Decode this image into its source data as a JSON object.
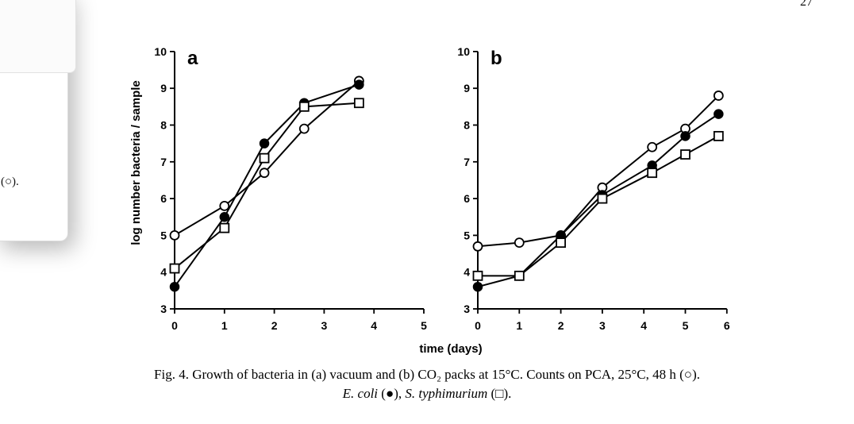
{
  "page_number": "27",
  "side_panel": {
    "text": "(○)."
  },
  "caption": {
    "line1": "Fig. 4. Growth of bacteria in (a) vacuum and (b) CO₂ packs at 15°C. Counts on PCA, 25°C, 48 h (○).",
    "line2_species1": "E. coli",
    "line2_symbol1": " (●), ",
    "line2_species2": "S. typhimurium",
    "line2_symbol2": " (□)."
  },
  "chart_data": [
    {
      "type": "line",
      "panel_label": "a",
      "xlabel": "time (days)",
      "ylabel": "log number bacteria / sample",
      "xlim": [
        0,
        5
      ],
      "ylim": [
        3,
        10
      ],
      "xticks": [
        0,
        1,
        2,
        3,
        4,
        5
      ],
      "yticks": [
        3,
        4,
        5,
        6,
        7,
        8,
        9,
        10
      ],
      "series": [
        {
          "name": "PCA, 25°C, 48 h",
          "marker": "open-circle",
          "x": [
            0,
            1,
            1.8,
            2.6,
            3.7
          ],
          "y": [
            5.0,
            5.8,
            6.7,
            7.9,
            9.2
          ]
        },
        {
          "name": "E. coli",
          "marker": "filled-circle",
          "x": [
            0,
            1,
            1.8,
            2.6,
            3.7
          ],
          "y": [
            3.6,
            5.5,
            7.5,
            8.6,
            9.1
          ]
        },
        {
          "name": "S. typhimurium",
          "marker": "open-square",
          "x": [
            0,
            1,
            1.8,
            2.6,
            3.7
          ],
          "y": [
            4.1,
            5.2,
            7.1,
            8.5,
            8.6
          ]
        }
      ]
    },
    {
      "type": "line",
      "panel_label": "b",
      "xlabel": "time (days)",
      "ylabel": "",
      "xlim": [
        0,
        6
      ],
      "ylim": [
        3,
        10
      ],
      "xticks": [
        0,
        1,
        2,
        3,
        4,
        5,
        6
      ],
      "yticks": [
        3,
        4,
        5,
        6,
        7,
        8,
        9,
        10
      ],
      "series": [
        {
          "name": "PCA, 25°C, 48 h",
          "marker": "open-circle",
          "x": [
            0,
            1,
            2,
            3,
            4.2,
            5,
            5.8
          ],
          "y": [
            4.7,
            4.8,
            5.0,
            6.3,
            7.4,
            7.9,
            8.8
          ]
        },
        {
          "name": "E. coli",
          "marker": "filled-circle",
          "x": [
            0,
            1,
            2,
            3,
            4.2,
            5,
            5.8
          ],
          "y": [
            3.6,
            3.9,
            5.0,
            6.1,
            6.9,
            7.7,
            8.3
          ]
        },
        {
          "name": "S. typhimurium",
          "marker": "open-square",
          "x": [
            0,
            1,
            2,
            3,
            4.2,
            5,
            5.8
          ],
          "y": [
            3.9,
            3.9,
            4.8,
            6.0,
            6.7,
            7.2,
            7.7
          ]
        }
      ]
    }
  ]
}
